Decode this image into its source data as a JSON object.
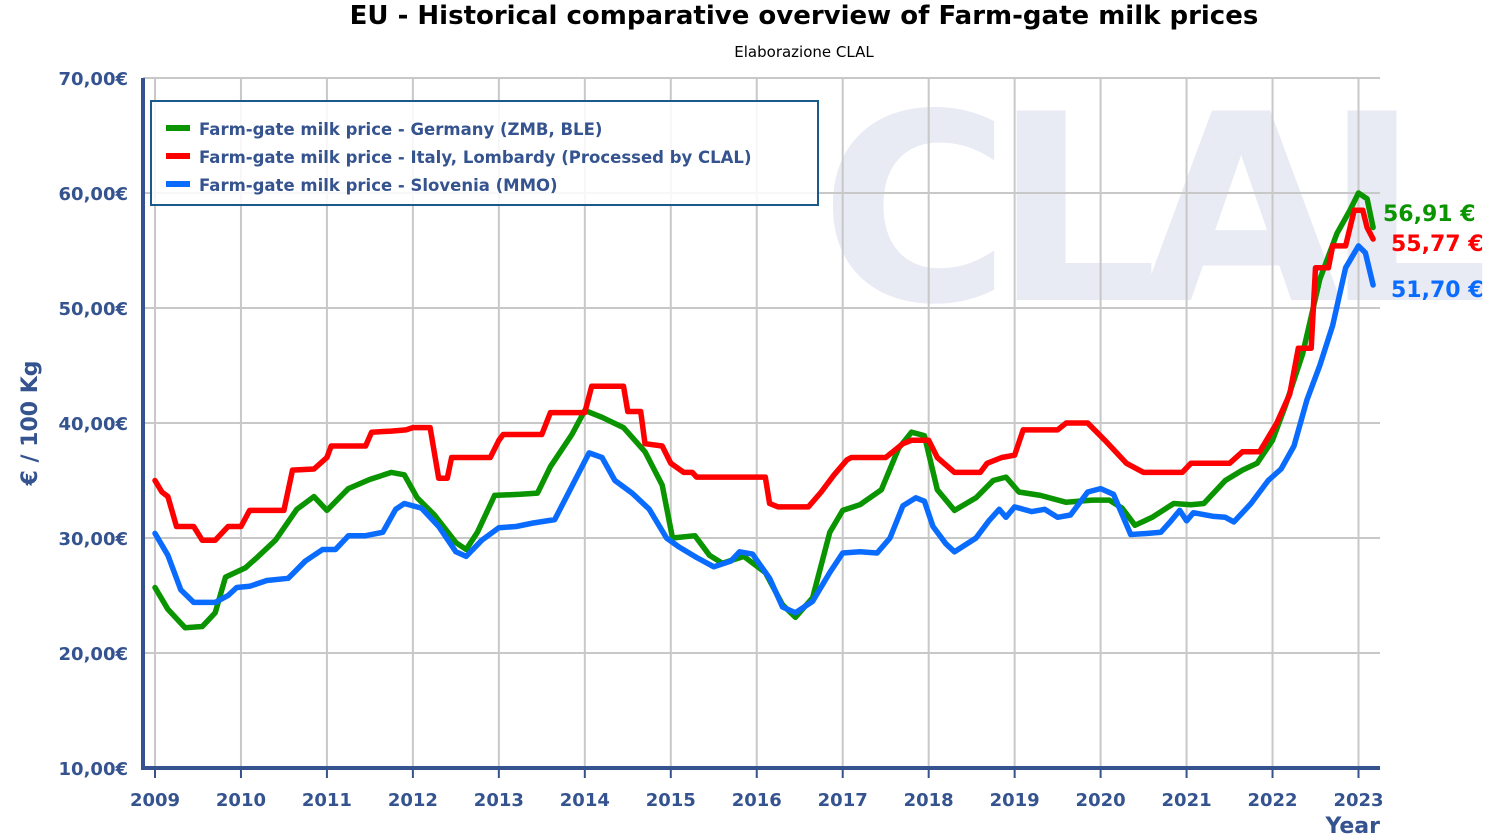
{
  "chart_data": {
    "type": "line",
    "title": "EU - Historical comparative overview of Farm-gate milk prices",
    "subtitle": "Elaborazione CLAL",
    "watermark": "CLAL",
    "xlabel": "Year",
    "ylabel": "€ / 100 Kg",
    "xlim": [
      2009,
      2023.25
    ],
    "ylim": [
      10,
      70
    ],
    "grid": true,
    "legend_position": "top-left",
    "x_ticks": [
      "2009",
      "2010",
      "2011",
      "2012",
      "2013",
      "2014",
      "2015",
      "2016",
      "2017",
      "2018",
      "2019",
      "2020",
      "2021",
      "2022",
      "2023"
    ],
    "y_ticks": [
      "10,00€",
      "20,00€",
      "30,00€",
      "40,00€",
      "50,00€",
      "60,00€",
      "70,00€"
    ],
    "y_tick_values": [
      10,
      20,
      30,
      40,
      50,
      60,
      70
    ],
    "series": [
      {
        "name": "Farm-gate milk price - Germany (ZMB, BLE)",
        "color": "#0a9400",
        "last_value_label": "56,91 €",
        "points": [
          [
            2009.0,
            25.7
          ],
          [
            2009.15,
            23.8
          ],
          [
            2009.35,
            22.2
          ],
          [
            2009.55,
            22.3
          ],
          [
            2009.7,
            23.5
          ],
          [
            2009.82,
            26.6
          ],
          [
            2010.05,
            27.4
          ],
          [
            2010.2,
            28.4
          ],
          [
            2010.4,
            29.8
          ],
          [
            2010.65,
            32.5
          ],
          [
            2010.85,
            33.6
          ],
          [
            2011.0,
            32.4
          ],
          [
            2011.25,
            34.3
          ],
          [
            2011.5,
            35.1
          ],
          [
            2011.75,
            35.7
          ],
          [
            2011.9,
            35.5
          ],
          [
            2012.05,
            33.5
          ],
          [
            2012.25,
            32.0
          ],
          [
            2012.5,
            29.6
          ],
          [
            2012.62,
            29.0
          ],
          [
            2012.75,
            30.5
          ],
          [
            2012.95,
            33.7
          ],
          [
            2013.25,
            33.8
          ],
          [
            2013.45,
            33.9
          ],
          [
            2013.6,
            36.2
          ],
          [
            2013.85,
            39.0
          ],
          [
            2014.0,
            41.1
          ],
          [
            2014.2,
            40.5
          ],
          [
            2014.45,
            39.6
          ],
          [
            2014.7,
            37.5
          ],
          [
            2014.9,
            34.6
          ],
          [
            2015.02,
            30.0
          ],
          [
            2015.28,
            30.2
          ],
          [
            2015.45,
            28.5
          ],
          [
            2015.6,
            27.8
          ],
          [
            2015.85,
            28.4
          ],
          [
            2016.1,
            27.0
          ],
          [
            2016.3,
            24.2
          ],
          [
            2016.45,
            23.1
          ],
          [
            2016.65,
            24.8
          ],
          [
            2016.85,
            30.5
          ],
          [
            2017.0,
            32.4
          ],
          [
            2017.2,
            32.9
          ],
          [
            2017.45,
            34.2
          ],
          [
            2017.65,
            37.8
          ],
          [
            2017.8,
            39.2
          ],
          [
            2017.95,
            38.9
          ],
          [
            2018.1,
            34.2
          ],
          [
            2018.3,
            32.4
          ],
          [
            2018.55,
            33.5
          ],
          [
            2018.75,
            35.0
          ],
          [
            2018.9,
            35.3
          ],
          [
            2019.05,
            34.0
          ],
          [
            2019.3,
            33.7
          ],
          [
            2019.6,
            33.1
          ],
          [
            2019.9,
            33.3
          ],
          [
            2020.1,
            33.3
          ],
          [
            2020.25,
            32.6
          ],
          [
            2020.4,
            31.1
          ],
          [
            2020.6,
            31.8
          ],
          [
            2020.85,
            33.0
          ],
          [
            2021.05,
            32.9
          ],
          [
            2021.2,
            33.0
          ],
          [
            2021.45,
            35.0
          ],
          [
            2021.65,
            35.9
          ],
          [
            2021.82,
            36.5
          ],
          [
            2022.0,
            38.5
          ],
          [
            2022.15,
            41.5
          ],
          [
            2022.35,
            46.0
          ],
          [
            2022.55,
            52.5
          ],
          [
            2022.75,
            56.5
          ],
          [
            2022.9,
            58.5
          ],
          [
            2023.0,
            60.0
          ],
          [
            2023.1,
            59.5
          ],
          [
            2023.17,
            57.0
          ]
        ]
      },
      {
        "name": "Farm-gate milk price - Italy, Lombardy (Processed by CLAL)",
        "color": "#ff0000",
        "last_value_label": "55,77 €",
        "points": [
          [
            2009.0,
            35.0
          ],
          [
            2009.08,
            34.0
          ],
          [
            2009.15,
            33.6
          ],
          [
            2009.25,
            31.0
          ],
          [
            2009.45,
            31.0
          ],
          [
            2009.55,
            29.8
          ],
          [
            2009.7,
            29.8
          ],
          [
            2009.85,
            31.0
          ],
          [
            2010.0,
            31.0
          ],
          [
            2010.1,
            32.4
          ],
          [
            2010.5,
            32.4
          ],
          [
            2010.6,
            35.9
          ],
          [
            2010.85,
            36.0
          ],
          [
            2011.0,
            37.0
          ],
          [
            2011.05,
            38.0
          ],
          [
            2011.45,
            38.0
          ],
          [
            2011.52,
            39.2
          ],
          [
            2011.75,
            39.3
          ],
          [
            2011.92,
            39.4
          ],
          [
            2012.0,
            39.6
          ],
          [
            2012.2,
            39.6
          ],
          [
            2012.3,
            35.2
          ],
          [
            2012.4,
            35.2
          ],
          [
            2012.45,
            37.0
          ],
          [
            2012.9,
            37.0
          ],
          [
            2013.0,
            38.5
          ],
          [
            2013.05,
            39.0
          ],
          [
            2013.5,
            39.0
          ],
          [
            2013.6,
            40.9
          ],
          [
            2014.0,
            40.9
          ],
          [
            2014.08,
            43.2
          ],
          [
            2014.45,
            43.2
          ],
          [
            2014.5,
            41.0
          ],
          [
            2014.65,
            41.0
          ],
          [
            2014.7,
            38.2
          ],
          [
            2014.9,
            38.0
          ],
          [
            2015.0,
            36.5
          ],
          [
            2015.15,
            35.7
          ],
          [
            2015.25,
            35.7
          ],
          [
            2015.3,
            35.3
          ],
          [
            2016.1,
            35.3
          ],
          [
            2016.15,
            33.0
          ],
          [
            2016.25,
            32.7
          ],
          [
            2016.6,
            32.7
          ],
          [
            2016.75,
            34.0
          ],
          [
            2016.9,
            35.5
          ],
          [
            2017.05,
            36.8
          ],
          [
            2017.1,
            37.0
          ],
          [
            2017.5,
            37.0
          ],
          [
            2017.7,
            38.2
          ],
          [
            2017.8,
            38.5
          ],
          [
            2018.0,
            38.5
          ],
          [
            2018.1,
            37.0
          ],
          [
            2018.3,
            35.7
          ],
          [
            2018.6,
            35.7
          ],
          [
            2018.68,
            36.5
          ],
          [
            2018.85,
            37.0
          ],
          [
            2019.0,
            37.2
          ],
          [
            2019.1,
            39.4
          ],
          [
            2019.5,
            39.4
          ],
          [
            2019.6,
            40.0
          ],
          [
            2019.85,
            40.0
          ],
          [
            2020.05,
            38.5
          ],
          [
            2020.3,
            36.5
          ],
          [
            2020.5,
            35.7
          ],
          [
            2020.95,
            35.7
          ],
          [
            2021.05,
            36.5
          ],
          [
            2021.5,
            36.5
          ],
          [
            2021.65,
            37.5
          ],
          [
            2021.85,
            37.5
          ],
          [
            2022.05,
            40.0
          ],
          [
            2022.2,
            42.5
          ],
          [
            2022.3,
            46.5
          ],
          [
            2022.45,
            46.5
          ],
          [
            2022.5,
            53.5
          ],
          [
            2022.65,
            53.5
          ],
          [
            2022.7,
            55.4
          ],
          [
            2022.85,
            55.4
          ],
          [
            2022.95,
            58.5
          ],
          [
            2023.05,
            58.5
          ],
          [
            2023.1,
            57.0
          ],
          [
            2023.17,
            56.0
          ]
        ]
      },
      {
        "name": "Farm-gate milk price - Slovenia (MMO)",
        "color": "#0a6cff",
        "last_value_label": "51,70 €",
        "points": [
          [
            2009.0,
            30.4
          ],
          [
            2009.15,
            28.5
          ],
          [
            2009.3,
            25.5
          ],
          [
            2009.45,
            24.4
          ],
          [
            2009.7,
            24.4
          ],
          [
            2009.85,
            25.0
          ],
          [
            2009.95,
            25.7
          ],
          [
            2010.1,
            25.8
          ],
          [
            2010.3,
            26.3
          ],
          [
            2010.55,
            26.5
          ],
          [
            2010.75,
            28.0
          ],
          [
            2010.95,
            29.0
          ],
          [
            2011.1,
            29.0
          ],
          [
            2011.25,
            30.2
          ],
          [
            2011.45,
            30.2
          ],
          [
            2011.65,
            30.5
          ],
          [
            2011.8,
            32.5
          ],
          [
            2011.9,
            33.0
          ],
          [
            2012.1,
            32.6
          ],
          [
            2012.3,
            31.0
          ],
          [
            2012.5,
            28.8
          ],
          [
            2012.62,
            28.4
          ],
          [
            2012.8,
            29.8
          ],
          [
            2013.0,
            30.9
          ],
          [
            2013.2,
            31.0
          ],
          [
            2013.4,
            31.3
          ],
          [
            2013.65,
            31.6
          ],
          [
            2013.85,
            34.5
          ],
          [
            2014.05,
            37.4
          ],
          [
            2014.2,
            37.0
          ],
          [
            2014.35,
            35.0
          ],
          [
            2014.55,
            33.9
          ],
          [
            2014.75,
            32.5
          ],
          [
            2014.95,
            30.0
          ],
          [
            2015.1,
            29.2
          ],
          [
            2015.3,
            28.3
          ],
          [
            2015.5,
            27.5
          ],
          [
            2015.7,
            28.0
          ],
          [
            2015.8,
            28.8
          ],
          [
            2015.95,
            28.6
          ],
          [
            2016.15,
            26.5
          ],
          [
            2016.3,
            24.0
          ],
          [
            2016.45,
            23.5
          ],
          [
            2016.65,
            24.5
          ],
          [
            2016.85,
            27.0
          ],
          [
            2017.0,
            28.7
          ],
          [
            2017.2,
            28.8
          ],
          [
            2017.4,
            28.7
          ],
          [
            2017.55,
            30.0
          ],
          [
            2017.7,
            32.8
          ],
          [
            2017.85,
            33.5
          ],
          [
            2017.95,
            33.2
          ],
          [
            2018.05,
            31.0
          ],
          [
            2018.2,
            29.5
          ],
          [
            2018.3,
            28.8
          ],
          [
            2018.55,
            30.0
          ],
          [
            2018.7,
            31.5
          ],
          [
            2018.82,
            32.5
          ],
          [
            2018.9,
            31.8
          ],
          [
            2019.0,
            32.7
          ],
          [
            2019.2,
            32.3
          ],
          [
            2019.35,
            32.5
          ],
          [
            2019.5,
            31.8
          ],
          [
            2019.65,
            32.0
          ],
          [
            2019.85,
            34.0
          ],
          [
            2020.0,
            34.3
          ],
          [
            2020.15,
            33.8
          ],
          [
            2020.35,
            30.3
          ],
          [
            2020.55,
            30.4
          ],
          [
            2020.7,
            30.5
          ],
          [
            2020.82,
            31.5
          ],
          [
            2020.92,
            32.4
          ],
          [
            2021.0,
            31.5
          ],
          [
            2021.08,
            32.2
          ],
          [
            2021.3,
            31.9
          ],
          [
            2021.45,
            31.8
          ],
          [
            2021.55,
            31.4
          ],
          [
            2021.75,
            33.0
          ],
          [
            2021.95,
            35.0
          ],
          [
            2022.1,
            36.0
          ],
          [
            2022.25,
            38.0
          ],
          [
            2022.4,
            42.0
          ],
          [
            2022.55,
            45.0
          ],
          [
            2022.7,
            48.5
          ],
          [
            2022.85,
            53.5
          ],
          [
            2023.0,
            55.4
          ],
          [
            2023.08,
            54.8
          ],
          [
            2023.17,
            52.0
          ]
        ]
      }
    ]
  }
}
